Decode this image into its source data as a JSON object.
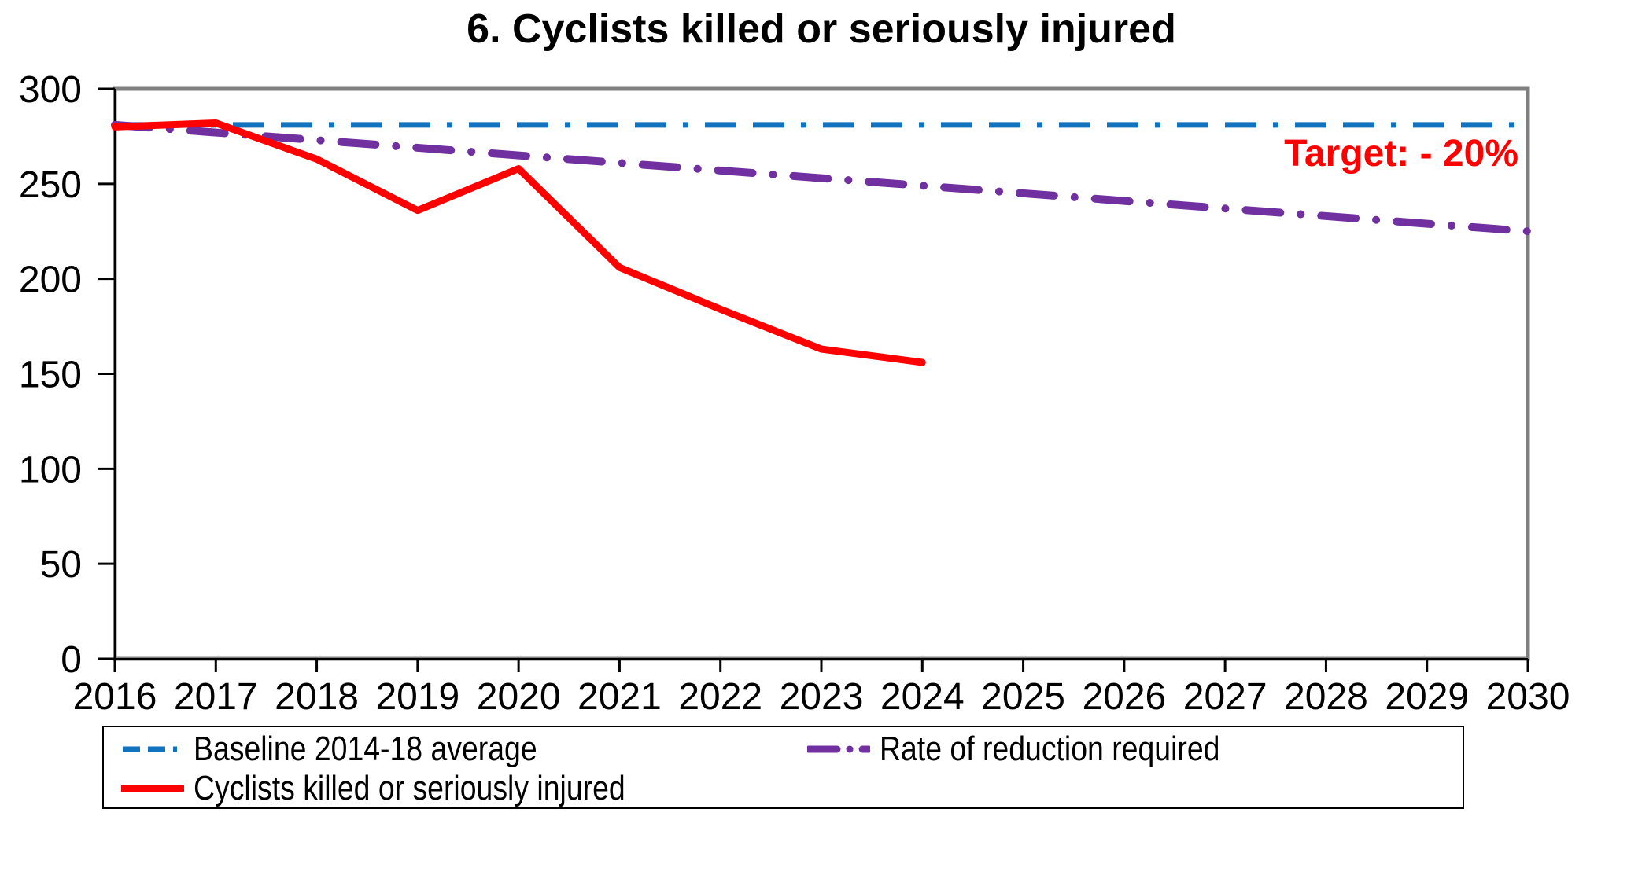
{
  "chart_data": {
    "type": "line",
    "title": "6. Cyclists killed or seriously injured",
    "xlabel": "",
    "ylabel": "",
    "xlim": [
      2016,
      2030
    ],
    "ylim": [
      0,
      300
    ],
    "xticks": [
      2016,
      2017,
      2018,
      2019,
      2020,
      2021,
      2022,
      2023,
      2024,
      2025,
      2026,
      2027,
      2028,
      2029,
      2030
    ],
    "yticks": [
      0,
      50,
      100,
      150,
      200,
      250,
      300
    ],
    "grid": false,
    "legend_position": "bottom",
    "plot_border_color": "#808080",
    "annotation": {
      "text": "Target: - 20%",
      "color": "#ff0000"
    },
    "series": [
      {
        "name": "Baseline 2014-18 average",
        "style": "dashed",
        "color": "#1272be",
        "x": [
          2016,
          2030
        ],
        "values": [
          281,
          281
        ]
      },
      {
        "name": "Rate of reduction required",
        "style": "dash-dot",
        "color": "#7030a0",
        "x": [
          2016,
          2030
        ],
        "values": [
          281,
          225
        ]
      },
      {
        "name": "Cyclists killed or seriously injured",
        "style": "solid",
        "color": "#ff0000",
        "x": [
          2016,
          2017,
          2018,
          2019,
          2020,
          2021,
          2022,
          2023,
          2024
        ],
        "values": [
          280,
          282,
          263,
          236,
          258,
          206,
          184,
          163,
          156
        ]
      }
    ]
  }
}
